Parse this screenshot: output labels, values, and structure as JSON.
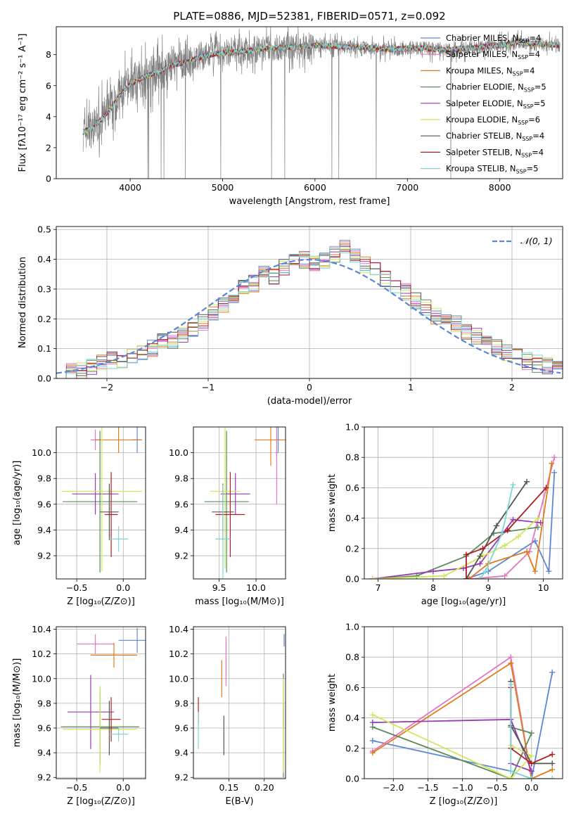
{
  "figure_title": "PLATE=0886, MJD=52381, FIBERID=0571, z=0.092",
  "colors": {
    "Chabrier MILES": "#5b87d6",
    "Salpeter MILES": "#e377c2",
    "Kroupa MILES": "#e37a1b",
    "Chabrier ELODIE": "#5f8a5f",
    "Salpeter ELODIE": "#9a3ab5",
    "Kroupa ELODIE": "#cfe85a",
    "Chabrier STELIB": "#555555",
    "Salpeter STELIB": "#b01f1f",
    "Kroupa STELIB": "#7fd6d6",
    "gauss": "#5b87d6"
  },
  "chart_data": [
    {
      "id": "spectrum",
      "type": "line",
      "title": "",
      "xlabel": "wavelength [Angstrom, rest frame]",
      "ylabel": "Flux [fλ10⁻¹⁷ erg cm⁻² s⁻¹ A⁻¹]",
      "xlim": [
        3200,
        8680
      ],
      "ylim": [
        0,
        9.8
      ],
      "xticks": [
        4000,
        5000,
        6000,
        7000,
        8000
      ],
      "yticks": [
        0,
        2,
        4,
        6,
        8
      ],
      "legend_position": "top-right",
      "continuum": {
        "x": [
          3490,
          3600,
          3700,
          3800,
          3900,
          4000,
          4100,
          4200,
          4300,
          4400,
          4500,
          4600,
          4700,
          4800,
          5000,
          5200,
          5400,
          5600,
          5800,
          6000,
          6200,
          6400,
          6600,
          6800,
          7000,
          7200,
          7400,
          7600,
          7800,
          8000,
          8200,
          8400,
          8650
        ],
        "y": [
          3.0,
          3.3,
          3.9,
          4.6,
          5.5,
          6.1,
          6.4,
          6.7,
          6.8,
          7.2,
          7.4,
          7.5,
          7.7,
          7.9,
          8.1,
          8.2,
          8.35,
          8.45,
          8.5,
          8.6,
          8.55,
          8.5,
          8.45,
          8.35,
          8.4,
          8.4,
          8.3,
          8.4,
          8.5,
          8.6,
          8.8,
          8.7,
          8.6
        ]
      },
      "legend": [
        {
          "label": "Chabrier MILES, N",
          "sub": "SSP",
          "value": "=4"
        },
        {
          "label": "Salpeter MILES, N",
          "sub": "SSP",
          "value": "=4"
        },
        {
          "label": "Kroupa MILES, N",
          "sub": "SSP",
          "value": "=4"
        },
        {
          "label": "Chabrier ELODIE, N",
          "sub": "SSP",
          "value": "=5"
        },
        {
          "label": "Salpeter ELODIE, N",
          "sub": "SSP",
          "value": "=5"
        },
        {
          "label": "Kroupa ELODIE, N",
          "sub": "SSP",
          "value": "=6"
        },
        {
          "label": "Chabrier STELIB, N",
          "sub": "SSP",
          "value": "=4"
        },
        {
          "label": "Salpeter STELIB, N",
          "sub": "SSP",
          "value": "=4"
        },
        {
          "label": "Kroupa STELIB, N",
          "sub": "SSP",
          "value": "=5"
        }
      ]
    },
    {
      "id": "residuals",
      "type": "line",
      "xlabel": "(data-model)/error",
      "ylabel": "Normed distribution",
      "xlim": [
        -2.5,
        2.5
      ],
      "ylim": [
        0,
        0.51
      ],
      "xticks": [
        -2,
        -1,
        0,
        1,
        2
      ],
      "yticks": [
        0.0,
        0.1,
        0.2,
        0.3,
        0.4,
        0.5
      ],
      "legend": "𝒩(0, 1)",
      "legend_position": "top-right",
      "bin_width": 0.1,
      "bin_start": -2.5,
      "base_hist": [
        0.02,
        0.02,
        0.03,
        0.04,
        0.05,
        0.06,
        0.06,
        0.08,
        0.09,
        0.1,
        0.12,
        0.13,
        0.15,
        0.17,
        0.19,
        0.22,
        0.24,
        0.27,
        0.3,
        0.32,
        0.35,
        0.34,
        0.37,
        0.39,
        0.4,
        0.39,
        0.4,
        0.42,
        0.44,
        0.42,
        0.38,
        0.36,
        0.33,
        0.31,
        0.29,
        0.26,
        0.24,
        0.21,
        0.2,
        0.18,
        0.16,
        0.14,
        0.12,
        0.1,
        0.09,
        0.08,
        0.06,
        0.05,
        0.04,
        0.03
      ]
    },
    {
      "id": "age-vs-Z",
      "type": "scatter",
      "xlabel": "Z [log₁₀(Z/Z⊙)]",
      "ylabel": "age  [log₁₀(age/yr)]",
      "xlim": [
        -0.72,
        0.24
      ],
      "ylim": [
        9.02,
        10.2
      ],
      "xticks": [
        -0.5,
        0.0
      ],
      "yticks": [
        9.2,
        9.4,
        9.6,
        9.8,
        10.0
      ],
      "points": [
        {
          "series": "Chabrier MILES",
          "x": 0.15,
          "y": 10.1,
          "xerr": 0.05,
          "yerr": 0.1
        },
        {
          "series": "Salpeter MILES",
          "x": -0.3,
          "y": 10.1,
          "xerr": 0.05,
          "yerr": 0.08
        },
        {
          "series": "Kroupa MILES",
          "x": -0.05,
          "y": 10.1,
          "xerr": 0.25,
          "yerr": 0.1
        },
        {
          "series": "Chabrier ELODIE",
          "x": -0.25,
          "y": 9.62,
          "xerr": 0.4,
          "yerr": 0.55
        },
        {
          "series": "Salpeter ELODIE",
          "x": -0.3,
          "y": 9.68,
          "xerr": 0.25,
          "yerr": 0.16
        },
        {
          "series": "Kroupa ELODIE",
          "x": -0.23,
          "y": 9.7,
          "xerr": 0.43,
          "yerr": 0.62
        },
        {
          "series": "Chabrier STELIB",
          "x": -0.15,
          "y": 9.54,
          "xerr": 0.1,
          "yerr": 0.22
        },
        {
          "series": "Salpeter STELIB",
          "x": -0.13,
          "y": 9.52,
          "xerr": 0.07,
          "yerr": 0.33
        },
        {
          "series": "Kroupa STELIB",
          "x": -0.05,
          "y": 9.33,
          "xerr": 0.1,
          "yerr": 0.1
        }
      ]
    },
    {
      "id": "age-vs-mass",
      "type": "scatter",
      "xlabel": "mass [log₁₀(M/M⊙)]",
      "ylabel": "",
      "xlim": [
        9.15,
        10.4
      ],
      "ylim": [
        9.02,
        10.2
      ],
      "xticks": [
        9.5,
        10.0
      ],
      "yticks": [
        9.2,
        9.4,
        9.6,
        9.8,
        10.0
      ],
      "points": [
        {
          "series": "Chabrier MILES",
          "x": 10.3,
          "y": 10.1,
          "xerr": 0.02,
          "yerr": 0.1
        },
        {
          "series": "Salpeter MILES",
          "x": 10.28,
          "y": 10.0,
          "xerr": 0.02,
          "yerr": 0.4
        },
        {
          "series": "Kroupa MILES",
          "x": 10.2,
          "y": 10.1,
          "xerr": 0.22,
          "yerr": 0.2
        },
        {
          "series": "Chabrier ELODIE",
          "x": 9.6,
          "y": 9.62,
          "xerr": 0.3,
          "yerr": 0.55
        },
        {
          "series": "Salpeter ELODIE",
          "x": 9.72,
          "y": 9.68,
          "xerr": 0.2,
          "yerr": 0.16
        },
        {
          "series": "Kroupa ELODIE",
          "x": 9.58,
          "y": 9.7,
          "xerr": 0.2,
          "yerr": 0.6
        },
        {
          "series": "Chabrier STELIB",
          "x": 9.55,
          "y": 9.54,
          "xerr": 0.15,
          "yerr": 0.22
        },
        {
          "series": "Salpeter STELIB",
          "x": 9.65,
          "y": 9.52,
          "xerr": 0.2,
          "yerr": 0.33
        },
        {
          "series": "Kroupa STELIB",
          "x": 9.55,
          "y": 9.33,
          "xerr": 0.1,
          "yerr": 0.42
        }
      ]
    },
    {
      "id": "mass-weight-vs-age",
      "type": "line",
      "xlabel": "age  [log₁₀(age/yr)]",
      "ylabel": "mass weight",
      "xlim": [
        6.75,
        10.35
      ],
      "ylim": [
        0,
        1.0
      ],
      "xticks": [
        7,
        8,
        9,
        10
      ],
      "yticks": [
        0.0,
        0.2,
        0.4,
        0.6,
        0.8,
        1.0
      ],
      "series": [
        {
          "name": "Chabrier MILES",
          "x": [
            8.6,
            9.0,
            9.85,
            10.1,
            10.2
          ],
          "y": [
            0.0,
            0.05,
            0.25,
            0.05,
            0.7
          ]
        },
        {
          "name": "Salpeter MILES",
          "x": [
            8.7,
            9.3,
            9.75,
            10.2
          ],
          "y": [
            0.0,
            0.02,
            0.18,
            0.8
          ]
        },
        {
          "name": "Kroupa MILES",
          "x": [
            8.65,
            9.0,
            9.7,
            9.85,
            10.15
          ],
          "y": [
            0.0,
            0.1,
            0.18,
            0.05,
            0.76
          ]
        },
        {
          "name": "Chabrier ELODIE",
          "x": [
            6.9,
            7.7,
            8.6,
            9.1,
            9.9
          ],
          "y": [
            0.0,
            0.02,
            0.15,
            0.3,
            0.34
          ]
        },
        {
          "name": "Salpeter ELODIE",
          "x": [
            6.9,
            8.0,
            8.55,
            8.85,
            9.45,
            9.95
          ],
          "y": [
            0.0,
            0.05,
            0.07,
            0.1,
            0.39,
            0.37
          ]
        },
        {
          "name": "Kroupa ELODIE",
          "x": [
            6.9,
            8.2,
            8.9,
            9.3,
            9.55,
            9.9
          ],
          "y": [
            0.0,
            0.02,
            0.15,
            0.22,
            0.28,
            0.4
          ]
        },
        {
          "name": "Chabrier STELIB",
          "x": [
            8.6,
            8.85,
            9.15,
            9.7
          ],
          "y": [
            0.0,
            0.15,
            0.35,
            0.64
          ]
        },
        {
          "name": "Salpeter STELIB",
          "x": [
            8.6,
            8.6,
            8.9,
            9.35,
            10.05
          ],
          "y": [
            0.0,
            0.16,
            0.2,
            0.32,
            0.6
          ]
        },
        {
          "name": "Kroupa STELIB",
          "x": [
            8.85,
            8.95,
            9.25,
            9.45
          ],
          "y": [
            0.0,
            0.05,
            0.3,
            0.62
          ]
        }
      ]
    },
    {
      "id": "mass-vs-Z",
      "type": "scatter",
      "xlabel": "Z [log₁₀(Z/Z⊙)]",
      "ylabel": "mass [log₁₀(M/M⊙)]",
      "xlim": [
        -0.72,
        0.24
      ],
      "ylim": [
        9.19,
        10.42
      ],
      "xticks": [
        -0.5,
        0.0
      ],
      "yticks": [
        9.2,
        9.4,
        9.6,
        9.8,
        10.0,
        10.2,
        10.4
      ],
      "points": [
        {
          "series": "Chabrier MILES",
          "x": 0.15,
          "y": 10.31,
          "xerr": 0.2,
          "yerr": 0.1
        },
        {
          "series": "Salpeter MILES",
          "x": -0.3,
          "y": 10.28,
          "xerr": 0.2,
          "yerr": 0.08
        },
        {
          "series": "Kroupa MILES",
          "x": -0.1,
          "y": 10.19,
          "xerr": 0.25,
          "yerr": 0.1
        },
        {
          "series": "Chabrier ELODIE",
          "x": -0.25,
          "y": 9.61,
          "xerr": 0.42,
          "yerr": 0.3
        },
        {
          "series": "Salpeter ELODIE",
          "x": -0.35,
          "y": 9.73,
          "xerr": 0.25,
          "yerr": 0.3
        },
        {
          "series": "Kroupa ELODIE",
          "x": -0.25,
          "y": 9.59,
          "xerr": 0.4,
          "yerr": 0.35
        },
        {
          "series": "Chabrier STELIB",
          "x": -0.15,
          "y": 9.6,
          "xerr": 0.1,
          "yerr": 0.22
        },
        {
          "series": "Salpeter STELIB",
          "x": -0.13,
          "y": 9.67,
          "xerr": 0.1,
          "yerr": 0.18
        },
        {
          "series": "Kroupa STELIB",
          "x": -0.05,
          "y": 9.55,
          "xerr": 0.1,
          "yerr": 0.06
        }
      ]
    },
    {
      "id": "mass-vs-ebv",
      "type": "scatter",
      "xlabel": "E(B-V)",
      "ylabel": "",
      "xlim": [
        0.1,
        0.23
      ],
      "ylim": [
        9.19,
        10.42
      ],
      "xticks": [
        0.15,
        0.2
      ],
      "yticks": [
        9.2,
        9.4,
        9.6,
        9.8,
        10.0,
        10.2,
        10.4
      ],
      "points": [
        {
          "series": "Chabrier MILES",
          "x": 0.228,
          "y": 10.31,
          "xerr": 0.0,
          "yerr": 0.05
        },
        {
          "series": "Salpeter MILES",
          "x": 0.146,
          "y": 10.14,
          "xerr": 0.0,
          "yerr": 0.2
        },
        {
          "series": "Kroupa MILES",
          "x": 0.14,
          "y": 10.0,
          "xerr": 0.0,
          "yerr": 0.15
        },
        {
          "series": "Chabrier ELODIE",
          "x": 0.227,
          "y": 9.62,
          "xerr": 0.0,
          "yerr": 0.42
        },
        {
          "series": "Salpeter ELODIE",
          "x": 0.227,
          "y": 9.7,
          "xerr": 0.0,
          "yerr": 0.1
        },
        {
          "series": "Kroupa ELODIE",
          "x": 0.227,
          "y": 9.62,
          "xerr": 0.0,
          "yerr": 0.38
        },
        {
          "series": "Chabrier STELIB",
          "x": 0.143,
          "y": 9.54,
          "xerr": 0.0,
          "yerr": 0.16
        },
        {
          "series": "Salpeter STELIB",
          "x": 0.107,
          "y": 9.74,
          "xerr": 0.0,
          "yerr": 0.11
        },
        {
          "series": "Kroupa STELIB",
          "x": 0.107,
          "y": 9.58,
          "xerr": 0.0,
          "yerr": 0.15
        }
      ]
    },
    {
      "id": "mass-weight-vs-Z",
      "type": "line",
      "xlabel": "Z [log₁₀(Z/Z⊙)]",
      "ylabel": "mass weight",
      "xlim": [
        -2.42,
        0.45
      ],
      "ylim": [
        0,
        1.0
      ],
      "xticks": [
        -2.0,
        -1.5,
        -1.0,
        -0.5,
        0.0
      ],
      "yticks": [
        0.0,
        0.2,
        0.4,
        0.6,
        0.8,
        1.0
      ],
      "series": [
        {
          "name": "Chabrier MILES",
          "x": [
            -2.3,
            -0.3,
            0.0,
            0.3
          ],
          "y": [
            0.25,
            0.05,
            0.0,
            0.7
          ]
        },
        {
          "name": "Salpeter MILES",
          "x": [
            -2.3,
            -0.3,
            0.0,
            0.3
          ],
          "y": [
            0.18,
            0.8,
            0.0,
            0.0
          ]
        },
        {
          "name": "Kroupa MILES",
          "x": [
            -2.3,
            -0.3,
            0.0,
            0.3
          ],
          "y": [
            0.17,
            0.76,
            0.0,
            0.06
          ]
        },
        {
          "name": "Chabrier ELODIE",
          "x": [
            -2.3,
            -0.3,
            0.0,
            -0.3
          ],
          "y": [
            0.34,
            0.0,
            0.3,
            0.34
          ]
        },
        {
          "name": "Salpeter ELODIE",
          "x": [
            -2.3,
            -0.3,
            0.0,
            -0.3
          ],
          "y": [
            0.37,
            0.39,
            0.05,
            0.1
          ]
        },
        {
          "name": "Kroupa ELODIE",
          "x": [
            -2.3,
            -0.3,
            0.0,
            -0.3
          ],
          "y": [
            0.42,
            0.0,
            0.15,
            0.22
          ]
        },
        {
          "name": "Chabrier STELIB",
          "x": [
            -0.3,
            -0.3,
            0.0,
            0.3
          ],
          "y": [
            0.64,
            0.35,
            0.1,
            0.1
          ]
        },
        {
          "name": "Salpeter STELIB",
          "x": [
            -0.3,
            -0.3,
            0.0,
            0.3
          ],
          "y": [
            0.6,
            0.2,
            0.1,
            0.16
          ]
        },
        {
          "name": "Kroupa STELIB",
          "x": [
            -0.3,
            -0.3,
            0.0,
            0.3
          ],
          "y": [
            0.62,
            0.05,
            0.0,
            0.0
          ]
        }
      ]
    }
  ]
}
